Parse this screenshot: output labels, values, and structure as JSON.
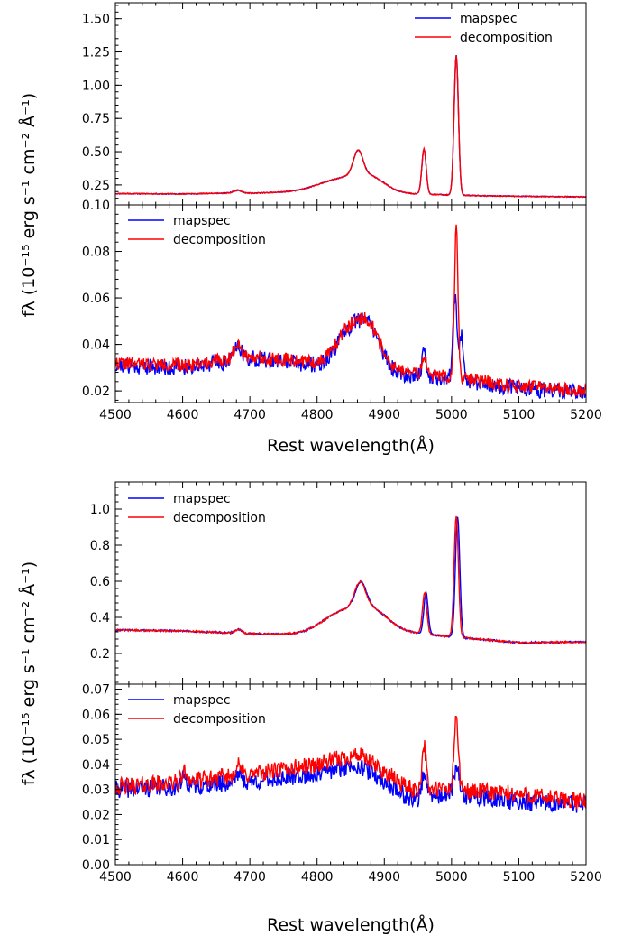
{
  "colors": {
    "mapspec": "#0000ff",
    "decomposition": "#ff0000",
    "axis": "#000000",
    "background": "#ffffff"
  },
  "figures": [
    {
      "xlabel": "Rest wavelength(Å)",
      "ylabel": "fλ (10⁻¹⁵ erg s⁻¹ cm⁻² Å⁻¹)"
    },
    {
      "xlabel": "Rest wavelength(Å)",
      "ylabel": "fλ (10⁻¹⁵ erg s⁻¹ cm⁻² Å⁻¹)"
    }
  ],
  "chart_data": [
    {
      "type": "line",
      "xlim": [
        4500,
        5200
      ],
      "ylim": [
        0.1,
        1.62
      ],
      "xticks": [
        4500,
        4600,
        4700,
        4800,
        4900,
        5000,
        5100,
        5200
      ],
      "yticks": [
        0.25,
        0.5,
        0.75,
        1.0,
        1.25,
        1.5
      ],
      "ytick_labels": [
        "0.25",
        "0.50",
        "0.75",
        "1.00",
        "1.25",
        "1.50"
      ],
      "show_xtick_labels": false,
      "legend": {
        "loc": "upper-right",
        "entries": [
          "mapspec",
          "decomposition"
        ]
      },
      "series": [
        {
          "name": "mapspec",
          "color": "#0000ff",
          "continuum": [
            [
              4500,
              0.185
            ],
            [
              4600,
              0.182
            ],
            [
              4680,
              0.19
            ],
            [
              4700,
              0.188
            ],
            [
              4800,
              0.2
            ],
            [
              4900,
              0.188
            ],
            [
              5050,
              0.168
            ],
            [
              5200,
              0.16
            ]
          ],
          "features": [
            [
              4682,
              0.02,
              6
            ],
            [
              4840,
              0.1,
              35
            ],
            [
              4880,
              0.08,
              22
            ],
            [
              4861,
              0.18,
              7
            ],
            [
              4959,
              0.34,
              3.2
            ],
            [
              5007,
              1.05,
              3.2
            ]
          ],
          "noise": 0.002,
          "seed": 11
        },
        {
          "name": "decomposition",
          "color": "#ff0000",
          "continuum": [
            [
              4500,
              0.185
            ],
            [
              4600,
              0.182
            ],
            [
              4680,
              0.19
            ],
            [
              4700,
              0.188
            ],
            [
              4800,
              0.2
            ],
            [
              4900,
              0.188
            ],
            [
              5050,
              0.168
            ],
            [
              5200,
              0.16
            ]
          ],
          "features": [
            [
              4682,
              0.02,
              6
            ],
            [
              4840,
              0.1,
              35
            ],
            [
              4880,
              0.08,
              22
            ],
            [
              4861,
              0.18,
              7
            ],
            [
              4959,
              0.34,
              3.2
            ],
            [
              5007,
              1.05,
              3.2
            ]
          ],
          "noise": 0.0025,
          "seed": 12
        }
      ]
    },
    {
      "type": "line",
      "xlim": [
        4500,
        5200
      ],
      "ylim": [
        0.015,
        0.1
      ],
      "xticks": [
        4500,
        4600,
        4700,
        4800,
        4900,
        5000,
        5100,
        5200
      ],
      "xtick_labels": [
        "4500",
        "4600",
        "4700",
        "4800",
        "4900",
        "5000",
        "5100",
        "5200"
      ],
      "yticks": [
        0.02,
        0.04,
        0.06,
        0.08,
        0.1
      ],
      "ytick_labels": [
        "0.02",
        "0.04",
        "0.06",
        "0.08",
        "0.10"
      ],
      "show_xtick_labels": true,
      "legend": {
        "loc": "upper-left",
        "entries": [
          "mapspec",
          "decomposition"
        ]
      },
      "series": [
        {
          "name": "mapspec",
          "color": "#0000ff",
          "continuum": [
            [
              4500,
              0.031
            ],
            [
              4600,
              0.03
            ],
            [
              4700,
              0.034
            ],
            [
              4800,
              0.031
            ],
            [
              4900,
              0.028
            ],
            [
              5000,
              0.025
            ],
            [
              5100,
              0.021
            ],
            [
              5200,
              0.019
            ]
          ],
          "features": [
            [
              4682,
              0.007,
              5
            ],
            [
              4850,
              0.016,
              20
            ],
            [
              4880,
              0.015,
              16
            ],
            [
              4959,
              0.01,
              3
            ],
            [
              5005,
              0.036,
              3
            ],
            [
              5015,
              0.02,
              3
            ]
          ],
          "noise": 0.0022,
          "seed": 21
        },
        {
          "name": "decomposition",
          "color": "#ff0000",
          "continuum": [
            [
              4500,
              0.032
            ],
            [
              4600,
              0.031
            ],
            [
              4700,
              0.035
            ],
            [
              4800,
              0.032
            ],
            [
              4900,
              0.029
            ],
            [
              5000,
              0.026
            ],
            [
              5100,
              0.022
            ],
            [
              5200,
              0.02
            ]
          ],
          "features": [
            [
              4682,
              0.007,
              5
            ],
            [
              4850,
              0.016,
              20
            ],
            [
              4880,
              0.014,
              16
            ],
            [
              4959,
              0.008,
              3
            ],
            [
              5007,
              0.066,
              2.6
            ]
          ],
          "noise": 0.0018,
          "seed": 22
        }
      ]
    },
    {
      "type": "line",
      "xlim": [
        4500,
        5200
      ],
      "ylim": [
        0.03,
        1.15
      ],
      "xticks": [
        4500,
        4600,
        4700,
        4800,
        4900,
        5000,
        5100,
        5200
      ],
      "yticks": [
        0.2,
        0.4,
        0.6,
        0.8,
        1.0
      ],
      "ytick_labels": [
        "0.2",
        "0.4",
        "0.6",
        "0.8",
        "1.0"
      ],
      "show_xtick_labels": false,
      "legend": {
        "loc": "upper-left",
        "entries": [
          "mapspec",
          "decomposition"
        ]
      },
      "series": [
        {
          "name": "mapspec",
          "color": "#0000ff",
          "continuum": [
            [
              4500,
              0.33
            ],
            [
              4600,
              0.325
            ],
            [
              4700,
              0.31
            ],
            [
              4780,
              0.305
            ],
            [
              4900,
              0.33
            ],
            [
              4980,
              0.3
            ],
            [
              5100,
              0.26
            ],
            [
              5200,
              0.265
            ]
          ],
          "features": [
            [
              4683,
              0.02,
              5
            ],
            [
              4835,
              0.1,
              30
            ],
            [
              4880,
              0.1,
              25
            ],
            [
              4865,
              0.13,
              8
            ],
            [
              4962,
              0.23,
              3.2
            ],
            [
              5009,
              0.67,
              3.2
            ]
          ],
          "noise": 0.003,
          "seed": 31
        },
        {
          "name": "decomposition",
          "color": "#ff0000",
          "continuum": [
            [
              4500,
              0.33
            ],
            [
              4600,
              0.325
            ],
            [
              4700,
              0.31
            ],
            [
              4780,
              0.305
            ],
            [
              4900,
              0.33
            ],
            [
              4980,
              0.3
            ],
            [
              5100,
              0.26
            ],
            [
              5200,
              0.265
            ]
          ],
          "features": [
            [
              4683,
              0.02,
              5
            ],
            [
              4835,
              0.1,
              30
            ],
            [
              4880,
              0.1,
              25
            ],
            [
              4864,
              0.13,
              8
            ],
            [
              4960,
              0.23,
              3.2
            ],
            [
              5007,
              0.67,
              3.2
            ]
          ],
          "noise": 0.003,
          "seed": 32
        }
      ]
    },
    {
      "type": "line",
      "xlim": [
        4500,
        5200
      ],
      "ylim": [
        0.0,
        0.072
      ],
      "xticks": [
        4500,
        4600,
        4700,
        4800,
        4900,
        5000,
        5100,
        5200
      ],
      "xtick_labels": [
        "4500",
        "4600",
        "4700",
        "4800",
        "4900",
        "5000",
        "5100",
        "5200"
      ],
      "yticks": [
        0.0,
        0.01,
        0.02,
        0.03,
        0.04,
        0.05,
        0.06,
        0.07
      ],
      "ytick_labels": [
        "0.00",
        "0.01",
        "0.02",
        "0.03",
        "0.04",
        "0.05",
        "0.06",
        "0.07"
      ],
      "show_xtick_labels": true,
      "legend": {
        "loc": "upper-left",
        "entries": [
          "mapspec",
          "decomposition"
        ]
      },
      "series": [
        {
          "name": "mapspec",
          "color": "#0000ff",
          "continuum": [
            [
              4500,
              0.03
            ],
            [
              4600,
              0.031
            ],
            [
              4700,
              0.033
            ],
            [
              4800,
              0.036
            ],
            [
              4860,
              0.04
            ],
            [
              4940,
              0.026
            ],
            [
              5000,
              0.028
            ],
            [
              5100,
              0.025
            ],
            [
              5200,
              0.024
            ]
          ],
          "features": [
            [
              4603,
              0.004,
              4
            ],
            [
              4682,
              0.004,
              5
            ],
            [
              4959,
              0.01,
              3
            ],
            [
              5008,
              0.01,
              4
            ]
          ],
          "noise": 0.0022,
          "seed": 41
        },
        {
          "name": "decomposition",
          "color": "#ff0000",
          "continuum": [
            [
              4500,
              0.031
            ],
            [
              4600,
              0.033
            ],
            [
              4700,
              0.036
            ],
            [
              4800,
              0.04
            ],
            [
              4860,
              0.044
            ],
            [
              4940,
              0.03
            ],
            [
              5000,
              0.03
            ],
            [
              5100,
              0.028
            ],
            [
              5200,
              0.025
            ]
          ],
          "features": [
            [
              4603,
              0.004,
              4
            ],
            [
              4682,
              0.004,
              5
            ],
            [
              4959,
              0.018,
              3
            ],
            [
              5007,
              0.03,
              3
            ]
          ],
          "noise": 0.0022,
          "seed": 42
        }
      ]
    }
  ]
}
